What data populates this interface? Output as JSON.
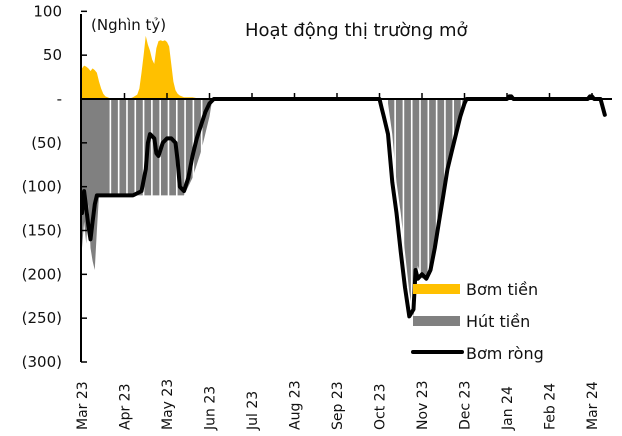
{
  "chart_data": {
    "type": "bar+line",
    "title": "Hoạt động thị trường mở",
    "unit_label": "(Nghìn tỷ)",
    "ylabel": "",
    "xlabel": "",
    "ylim": [
      -300,
      100
    ],
    "y_ticks": [
      100,
      50,
      0,
      -50,
      -100,
      -150,
      -200,
      -250,
      -300
    ],
    "y_tick_labels": [
      "100",
      "50",
      "-",
      "(50)",
      "(100)",
      "(150)",
      "(200)",
      "(250)",
      "(300)"
    ],
    "x_tick_labels": [
      "Mar 23",
      "Apr 23",
      "May 23",
      "Jun 23",
      "Jul 23",
      "Aug 23",
      "Sep 23",
      "Oct 23",
      "Nov 23",
      "Dec 23",
      "Jan 24",
      "Feb 24",
      "Mar 24"
    ],
    "legend": [
      {
        "label": "Bơm tiền",
        "color": "#FFC000",
        "type": "bar"
      },
      {
        "label": "Hút tiền",
        "color": "#808080",
        "type": "bar"
      },
      {
        "label": "Bơm ròng",
        "color": "#000000",
        "type": "line"
      }
    ],
    "grid": false,
    "series": [
      {
        "name": "Bơm tiền",
        "x_month_offset": [
          0.0,
          0.05,
          0.1,
          0.15,
          0.2,
          0.25,
          0.3,
          0.35,
          0.4,
          0.45,
          0.5,
          0.55,
          0.6,
          0.65,
          0.7,
          0.8,
          0.9,
          1.0,
          1.1,
          1.2,
          1.3,
          1.35,
          1.4,
          1.45,
          1.5,
          1.55,
          1.6,
          1.65,
          1.7,
          1.75,
          1.8,
          1.85,
          1.9,
          1.95,
          2.0,
          2.05,
          2.1,
          2.15,
          2.2,
          2.25,
          2.3,
          2.35,
          2.4,
          2.5,
          2.6,
          2.7,
          2.8,
          2.9,
          3.0,
          3.1
        ],
        "values": [
          35,
          38,
          37,
          35,
          32,
          35,
          33,
          30,
          20,
          12,
          6,
          3,
          2,
          1,
          0,
          0,
          0,
          0,
          0,
          2,
          5,
          12,
          30,
          50,
          72,
          62,
          55,
          45,
          40,
          58,
          66,
          67,
          66,
          67,
          65,
          60,
          40,
          20,
          10,
          6,
          4,
          3,
          2,
          2,
          2,
          1,
          1,
          1,
          1,
          0
        ]
      },
      {
        "name": "Hút tiền",
        "x_month_offset": [
          0.0,
          0.05,
          0.1,
          0.15,
          0.2,
          0.25,
          0.3,
          0.35,
          0.4,
          0.5,
          0.6,
          0.8,
          1.0,
          1.2,
          1.4,
          1.6,
          1.8,
          2.0,
          2.2,
          2.4,
          2.6,
          2.8,
          2.9,
          3.0,
          3.05,
          7.2,
          7.3,
          7.4,
          7.5,
          7.6,
          7.7,
          7.8,
          7.9,
          8.0,
          8.1,
          8.2,
          8.3,
          8.4,
          8.5,
          8.6,
          8.7,
          8.8,
          8.9,
          9.0,
          9.05
        ],
        "values": [
          -170,
          -140,
          -165,
          -120,
          -170,
          -185,
          -195,
          -150,
          -110,
          -110,
          -110,
          -110,
          -110,
          -110,
          -110,
          -110,
          -110,
          -110,
          -110,
          -110,
          -90,
          -60,
          -40,
          -20,
          -5,
          -5,
          -40,
          -95,
          -130,
          -175,
          -220,
          -248,
          -190,
          -205,
          -200,
          -200,
          -170,
          -140,
          -110,
          -80,
          -60,
          -35,
          -15,
          -3,
          0
        ]
      },
      {
        "name": "Bơm ròng",
        "x_month_offset": [
          0.0,
          0.05,
          0.1,
          0.15,
          0.2,
          0.25,
          0.3,
          0.35,
          0.4,
          0.5,
          0.6,
          0.8,
          1.0,
          1.2,
          1.4,
          1.5,
          1.55,
          1.6,
          1.7,
          1.75,
          1.8,
          1.9,
          2.0,
          2.1,
          2.2,
          2.25,
          2.3,
          2.4,
          2.5,
          2.6,
          2.7,
          2.8,
          2.9,
          3.0,
          3.1,
          3.2,
          4.0,
          5.0,
          6.0,
          6.9,
          7.0,
          7.05,
          7.1,
          7.2,
          7.3,
          7.4,
          7.5,
          7.6,
          7.7,
          7.8,
          7.85,
          7.9,
          8.0,
          8.1,
          8.2,
          8.3,
          8.4,
          8.5,
          8.6,
          8.7,
          8.8,
          8.9,
          9.0,
          9.05,
          9.5,
          10.0,
          10.05,
          10.1,
          10.15,
          11.0,
          11.9,
          11.95,
          12.0,
          12.05,
          12.1,
          12.2,
          12.3
        ],
        "values": [
          -130,
          -105,
          -125,
          -145,
          -160,
          -140,
          -120,
          -110,
          -110,
          -110,
          -110,
          -110,
          -110,
          -110,
          -105,
          -80,
          -50,
          -40,
          -45,
          -62,
          -65,
          -50,
          -45,
          -45,
          -50,
          -70,
          -100,
          -105,
          -90,
          -65,
          -45,
          -30,
          -15,
          -5,
          0,
          0,
          0,
          0,
          0,
          0,
          0,
          -10,
          -20,
          -40,
          -95,
          -130,
          -175,
          -215,
          -248,
          -240,
          -195,
          -205,
          -200,
          -205,
          -195,
          -170,
          -140,
          -110,
          -80,
          -60,
          -40,
          -20,
          -5,
          0,
          0,
          0,
          3,
          3,
          0,
          0,
          0,
          3,
          3,
          0,
          0,
          0,
          -18
        ]
      }
    ]
  }
}
